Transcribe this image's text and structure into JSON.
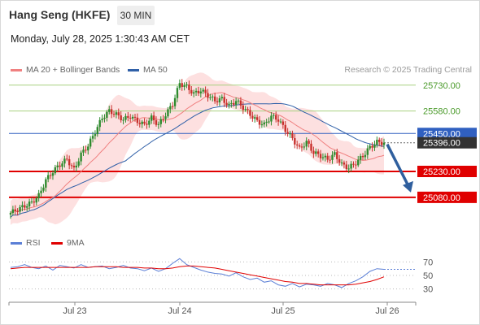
{
  "header": {
    "title": "Hang Seng (HKFE)",
    "timeframe": "30 MIN",
    "datetime": "Monday, July 28, 2025 1:30:43 AM CET"
  },
  "legend": {
    "ma20_bb": "MA 20 + Bollinger Bands",
    "ma50": "MA 50",
    "copyright": "Research © 2025 Trading Central",
    "rsi": "RSI",
    "ma9": "9MA"
  },
  "colors": {
    "ma20": "#f08080",
    "ma50": "#3060a8",
    "bb_fill": "#fde0e0",
    "candle_up": "#2e8b2e",
    "candle_down": "#c8302c",
    "resistance": "#a8d080",
    "pivot": "#3060c0",
    "support": "#e00000",
    "last_price": "#333333",
    "rsi": "#5b7fd6",
    "rsi_ma": "#e00000"
  },
  "chart_data": [
    {
      "type": "candlestick",
      "y_range": [
        24990,
        25790
      ],
      "x_labels": [
        "Jul 23",
        "Jul 24",
        "Jul 25",
        "Jul 26"
      ],
      "levels": [
        {
          "label": "25730.00",
          "value": 25730,
          "kind": "resistance"
        },
        {
          "label": "25580.00",
          "value": 25580,
          "kind": "resistance"
        },
        {
          "label": "25450.00",
          "value": 25450,
          "kind": "pivot"
        },
        {
          "label": "25396.00",
          "value": 25396,
          "kind": "last"
        },
        {
          "label": "25230.00",
          "value": 25230,
          "kind": "support"
        },
        {
          "label": "25080.00",
          "value": 25080,
          "kind": "support"
        }
      ],
      "close_path": [
        24990,
        25010,
        25030,
        25050,
        25090,
        25180,
        25230,
        25270,
        25300,
        25240,
        25330,
        25380,
        25460,
        25540,
        25580,
        25560,
        25530,
        25550,
        25520,
        25500,
        25540,
        25500,
        25560,
        25620,
        25740,
        25720,
        25680,
        25700,
        25670,
        25640,
        25650,
        25610,
        25640,
        25600,
        25560,
        25520,
        25500,
        25550,
        25530,
        25470,
        25420,
        25360,
        25400,
        25340,
        25320,
        25300,
        25330,
        25270,
        25250,
        25280,
        25320,
        25370,
        25400,
        25396
      ],
      "forecast": {
        "from": 25396,
        "to": 25080
      }
    },
    {
      "type": "line",
      "title": "RSI",
      "y_ticks": [
        70,
        50,
        30
      ],
      "y_range": [
        15,
        85
      ],
      "series": [
        {
          "name": "RSI",
          "values": [
            62,
            63,
            66,
            62,
            60,
            64,
            58,
            65,
            63,
            61,
            66,
            62,
            63,
            64,
            60,
            62,
            65,
            61,
            60,
            57,
            61,
            56,
            60,
            68,
            75,
            66,
            62,
            58,
            55,
            53,
            52,
            49,
            54,
            48,
            44,
            46,
            40,
            42,
            36,
            34,
            38,
            33,
            37,
            36,
            34,
            38,
            36,
            32,
            38,
            42,
            48,
            56,
            60,
            59
          ]
        },
        {
          "name": "9MA",
          "values": [
            60,
            61,
            62,
            62,
            62,
            62,
            62,
            62,
            62,
            62,
            62,
            62,
            63,
            63,
            63,
            63,
            62,
            62,
            62,
            61,
            61,
            60,
            60,
            61,
            63,
            64,
            64,
            63,
            62,
            61,
            59,
            57,
            55,
            53,
            51,
            49,
            47,
            45,
            43,
            41,
            40,
            38,
            38,
            37,
            36,
            36,
            36,
            36,
            36,
            37,
            39,
            41,
            44,
            48
          ]
        }
      ]
    }
  ]
}
